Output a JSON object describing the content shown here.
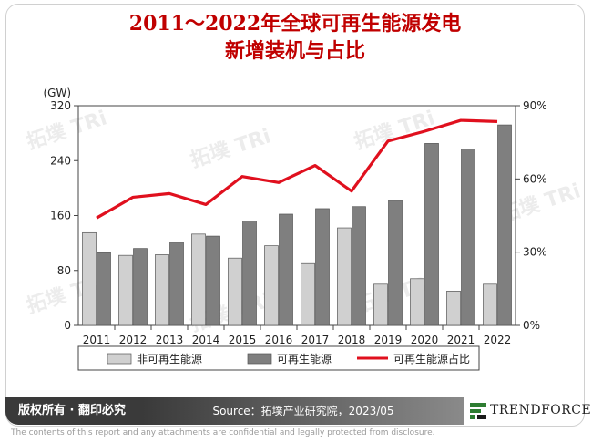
{
  "title_line1": "2011～2022年全球可再生能源发电",
  "title_line2": "新增装机与占比",
  "watermark": "拓墣 TRi",
  "footer": {
    "rights": "版权所有 · 翻印必究",
    "source": "Source：拓墣产业研究院，2023/05",
    "logo": "TRENDFORCE"
  },
  "disclaimer": "The contents of this report and any attachments are confidential and legally protected from disclosure.",
  "colors": {
    "non_renewable_bar": "#d0d0d0",
    "renewable_bar": "#7f7f7f",
    "share_line": "#e0101e",
    "title": "#c00000"
  },
  "chart_data": {
    "type": "bar",
    "categories": [
      "2011",
      "2012",
      "2013",
      "2014",
      "2015",
      "2016",
      "2017",
      "2018",
      "2019",
      "2020",
      "2021",
      "2022"
    ],
    "ylabel": "(GW)",
    "ylim": [
      0,
      320
    ],
    "yticks": [
      "0",
      "80",
      "160",
      "240",
      "320"
    ],
    "y2lim": [
      0,
      90
    ],
    "y2ticks": [
      "0%",
      "30%",
      "60%",
      "90%"
    ],
    "series": [
      {
        "name": "非可再生能源",
        "kind": "bar",
        "axis": "left",
        "values": [
          135,
          102,
          103,
          133,
          98,
          116,
          90,
          142,
          60,
          68,
          50,
          60
        ]
      },
      {
        "name": "可再生能源",
        "kind": "bar",
        "axis": "left",
        "values": [
          106,
          112,
          121,
          130,
          152,
          162,
          170,
          173,
          182,
          265,
          257,
          292
        ]
      },
      {
        "name": "可再生能源占比",
        "kind": "line",
        "axis": "right",
        "values": [
          44,
          52.5,
          54,
          49.5,
          61,
          58.5,
          65.5,
          55,
          75.5,
          79.5,
          84,
          83.5
        ]
      }
    ],
    "legend_position": "bottom",
    "grid": false
  }
}
